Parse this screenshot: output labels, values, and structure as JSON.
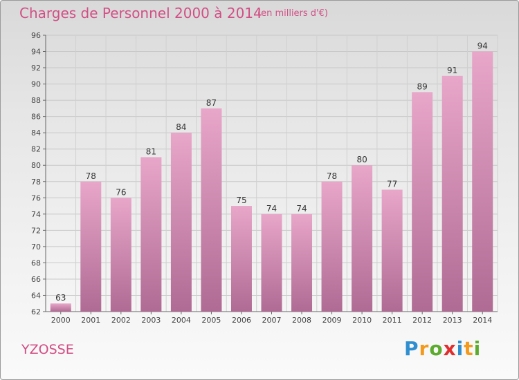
{
  "header": {
    "title": "Charges de Personnel 2000 à 2014",
    "subtitle": "(en milliers d'€)"
  },
  "footer": {
    "commune": "YZOSSE",
    "logo_letters": [
      {
        "char": "P",
        "color": "#2f8ecf"
      },
      {
        "char": "r",
        "color": "#f39a1d"
      },
      {
        "char": "o",
        "color": "#5cab2f"
      },
      {
        "char": "x",
        "color": "#e02d2d"
      },
      {
        "char": "i",
        "color": "#2f8ecf"
      },
      {
        "char": "t",
        "color": "#f39a1d"
      },
      {
        "char": "i",
        "color": "#5cab2f"
      }
    ]
  },
  "chart_data": {
    "type": "bar",
    "title": "Charges de Personnel 2000 à 2014",
    "subtitle": "(en milliers d'€)",
    "categories": [
      "2000",
      "2001",
      "2002",
      "2003",
      "2004",
      "2005",
      "2006",
      "2007",
      "2008",
      "2009",
      "2010",
      "2011",
      "2012",
      "2013",
      "2014"
    ],
    "values": [
      63,
      78,
      76,
      81,
      84,
      87,
      75,
      74,
      74,
      78,
      80,
      77,
      89,
      91,
      94
    ],
    "ylim": [
      62,
      96
    ],
    "yticks": [
      62,
      64,
      66,
      68,
      70,
      72,
      74,
      76,
      78,
      80,
      82,
      84,
      86,
      88,
      90,
      92,
      94,
      96
    ],
    "grid": true,
    "bar_color_top": "#e8a6c9",
    "bar_color_bottom": "#b06b94"
  }
}
